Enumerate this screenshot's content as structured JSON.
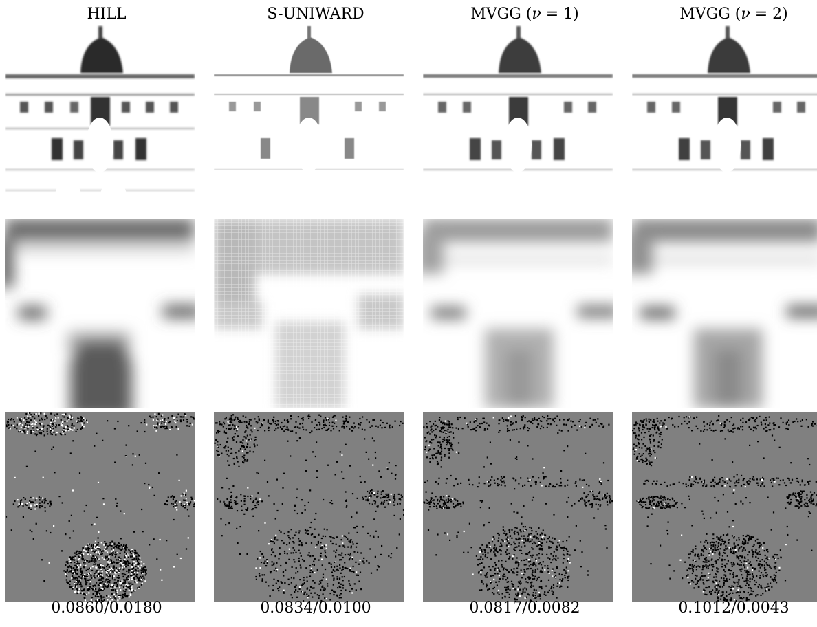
{
  "columns": [
    {
      "label": "HILL",
      "caption": "0.0860/0.0180"
    },
    {
      "label": "S-UNIWARD",
      "caption": "0.0834/0.0100"
    },
    {
      "label": "MVGG (",
      "nu": "ν",
      "eq": " = 1)",
      "caption": "0.0817/0.0082"
    },
    {
      "label": "MVGG (",
      "nu": "ν",
      "eq": " = 2)",
      "caption": "0.1012/0.0043"
    }
  ],
  "colors": {
    "background": "#ffffff",
    "noise_gray": "#808080",
    "ink": "#000000"
  }
}
